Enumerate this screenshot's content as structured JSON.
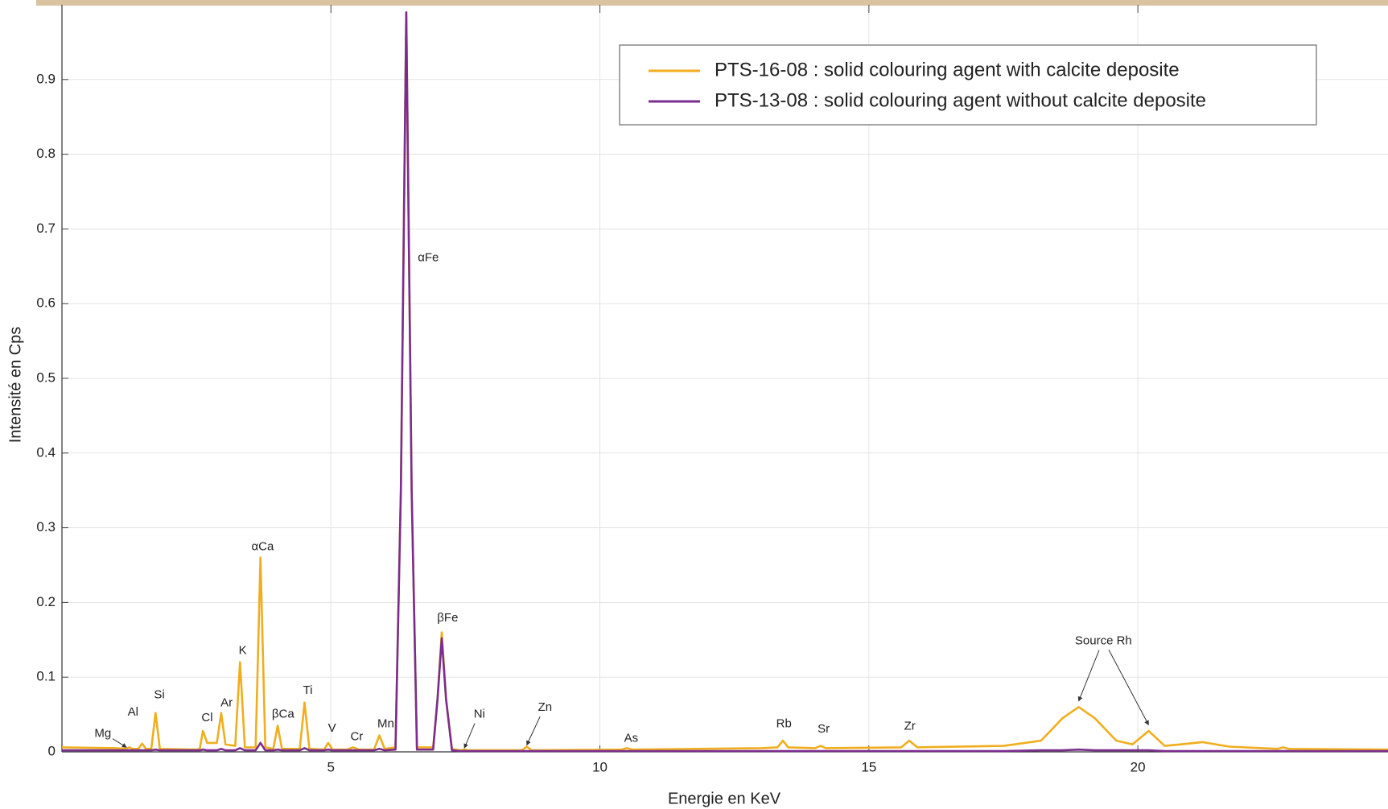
{
  "chart_data": {
    "type": "line",
    "xlabel": "Energie en KeV",
    "ylabel": "Intensité en Cps",
    "xlim": [
      0,
      24.65
    ],
    "ylim": [
      0,
      1
    ],
    "xticks": [
      5,
      10,
      15,
      20
    ],
    "yticks": [
      0,
      0.1,
      0.2,
      0.3,
      0.4,
      0.5,
      0.6,
      0.7,
      0.8,
      0.9
    ],
    "grid": true,
    "legend": "top-right",
    "x": [
      0,
      1.0,
      1.2,
      1.25,
      1.32,
      1.42,
      1.49,
      1.56,
      1.66,
      1.74,
      1.82,
      2.5,
      2.56,
      2.62,
      2.7,
      2.88,
      2.96,
      3.04,
      3.22,
      3.31,
      3.4,
      3.6,
      3.69,
      3.78,
      3.93,
      4.01,
      4.09,
      4.42,
      4.51,
      4.6,
      4.87,
      4.95,
      5.03,
      5.3,
      5.41,
      5.52,
      5.8,
      5.9,
      6.0,
      6.2,
      6.3,
      6.4,
      6.5,
      6.6,
      6.9,
      6.98,
      7.06,
      7.14,
      7.25,
      7.4,
      7.48,
      7.56,
      8.55,
      8.64,
      8.73,
      10.4,
      10.5,
      10.6,
      13.0,
      13.3,
      13.4,
      13.5,
      14.0,
      14.1,
      14.2,
      15.6,
      15.75,
      15.9,
      17.5,
      18.2,
      18.6,
      18.9,
      19.2,
      19.6,
      19.9,
      20.2,
      20.5,
      20.8,
      21.2,
      21.7,
      22.6,
      22.7,
      22.8,
      24.65
    ],
    "series": [
      {
        "name": "PTS-16-08 : solid colouring agent with calcite deposite",
        "color": "#f0ae1e",
        "values": [
          0.006,
          0.005,
          0.004,
          0.006,
          0.004,
          0.004,
          0.011,
          0.004,
          0.004,
          0.052,
          0.004,
          0.003,
          0.004,
          0.028,
          0.012,
          0.012,
          0.052,
          0.01,
          0.008,
          0.12,
          0.006,
          0.006,
          0.26,
          0.006,
          0.004,
          0.035,
          0.004,
          0.004,
          0.066,
          0.004,
          0.003,
          0.012,
          0.003,
          0.003,
          0.006,
          0.003,
          0.003,
          0.022,
          0.004,
          0.006,
          0.35,
          0.99,
          0.35,
          0.006,
          0.006,
          0.07,
          0.16,
          0.07,
          0.004,
          0.002,
          0.003,
          0.002,
          0.002,
          0.007,
          0.002,
          0.003,
          0.005,
          0.003,
          0.005,
          0.006,
          0.015,
          0.006,
          0.005,
          0.008,
          0.005,
          0.006,
          0.015,
          0.006,
          0.008,
          0.015,
          0.045,
          0.06,
          0.045,
          0.015,
          0.01,
          0.028,
          0.008,
          0.01,
          0.013,
          0.007,
          0.004,
          0.006,
          0.004,
          0.003
        ]
      },
      {
        "name": "PTS-13-08 : solid colouring agent without calcite deposite",
        "color": "#7b2d8e",
        "values": [
          0.002,
          0.002,
          0.002,
          0.002,
          0.002,
          0.002,
          0.002,
          0.002,
          0.002,
          0.003,
          0.002,
          0.002,
          0.002,
          0.003,
          0.002,
          0.002,
          0.004,
          0.002,
          0.002,
          0.005,
          0.002,
          0.002,
          0.012,
          0.002,
          0.002,
          0.003,
          0.002,
          0.002,
          0.005,
          0.002,
          0.002,
          0.003,
          0.002,
          0.002,
          0.002,
          0.002,
          0.002,
          0.004,
          0.002,
          0.003,
          0.35,
          0.99,
          0.35,
          0.003,
          0.003,
          0.07,
          0.152,
          0.07,
          0.002,
          0.001,
          0.001,
          0.001,
          0.001,
          0.001,
          0.001,
          0.001,
          0.001,
          0.001,
          0.001,
          0.001,
          0.001,
          0.001,
          0.001,
          0.001,
          0.001,
          0.001,
          0.001,
          0.001,
          0.001,
          0.002,
          0.002,
          0.003,
          0.002,
          0.002,
          0.002,
          0.002,
          0.001,
          0.001,
          0.001,
          0.001,
          0.001,
          0.001,
          0.001,
          0.001
        ]
      }
    ],
    "annotations": [
      {
        "text": "Mg",
        "x": 0.76,
        "y": 0.024,
        "arrows": [
          [
            1.2,
            0.006
          ]
        ]
      },
      {
        "text": "Al",
        "x": 1.32,
        "y": 0.053
      },
      {
        "text": "Si",
        "x": 1.81,
        "y": 0.076
      },
      {
        "text": "Cl",
        "x": 2.7,
        "y": 0.045
      },
      {
        "text": "Ar",
        "x": 3.06,
        "y": 0.065
      },
      {
        "text": "K",
        "x": 3.36,
        "y": 0.135
      },
      {
        "text": "αCa",
        "x": 3.73,
        "y": 0.274
      },
      {
        "text": "βCa",
        "x": 4.11,
        "y": 0.05
      },
      {
        "text": "Ti",
        "x": 4.57,
        "y": 0.082
      },
      {
        "text": "V",
        "x": 5.02,
        "y": 0.031
      },
      {
        "text": "Cr",
        "x": 5.48,
        "y": 0.02
      },
      {
        "text": "Mn",
        "x": 6.02,
        "y": 0.037
      },
      {
        "text": "αFe",
        "x": 6.81,
        "y": 0.661
      },
      {
        "text": "βFe",
        "x": 7.17,
        "y": 0.179
      },
      {
        "text": "Ni",
        "x": 7.76,
        "y": 0.05,
        "arrows": [
          [
            7.48,
            0.005
          ]
        ]
      },
      {
        "text": "Zn",
        "x": 8.98,
        "y": 0.059,
        "arrows": [
          [
            8.64,
            0.009
          ]
        ]
      },
      {
        "text": "As",
        "x": 10.58,
        "y": 0.018
      },
      {
        "text": "Rb",
        "x": 13.42,
        "y": 0.037
      },
      {
        "text": "Sr",
        "x": 14.16,
        "y": 0.03
      },
      {
        "text": "Zr",
        "x": 15.76,
        "y": 0.034
      },
      {
        "text": "Source Rh",
        "x": 19.36,
        "y": 0.148,
        "arrows": [
          [
            18.9,
            0.068
          ],
          [
            20.2,
            0.036
          ]
        ]
      }
    ]
  }
}
